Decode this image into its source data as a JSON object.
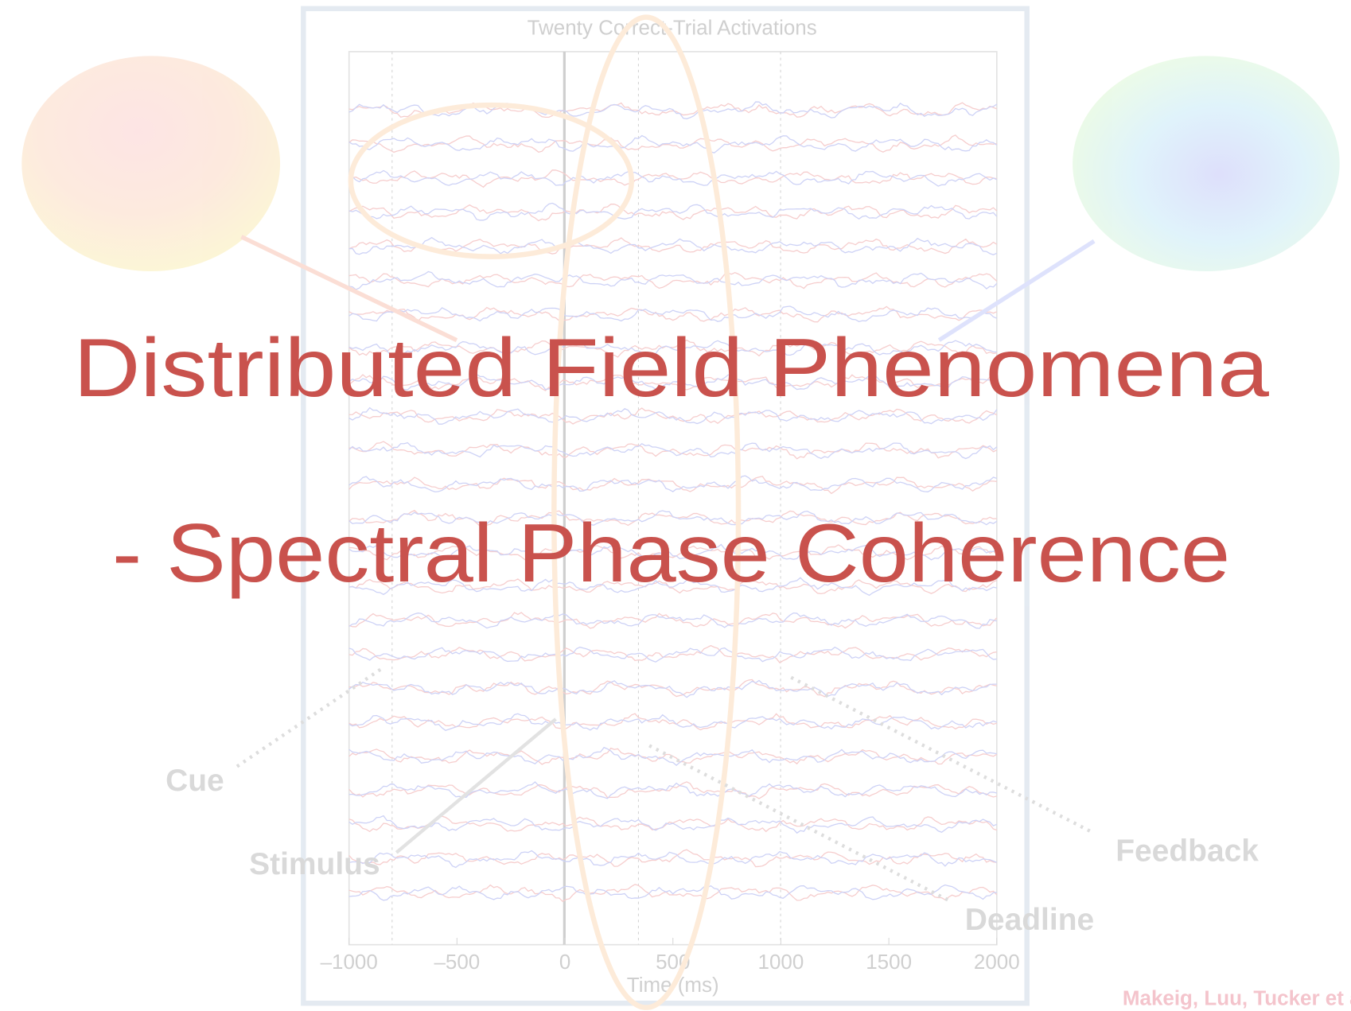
{
  "slide": {
    "title_line1": "Distributed Field Phenomena",
    "title_line2": "- Spectral Phase Coherence",
    "chart": {
      "title": "Twenty Correct-Trial Activations",
      "x_label": "Time (ms)",
      "xlim": [
        -1000,
        2000
      ],
      "xticks": [
        {
          "value": -1000,
          "label": "–1000"
        },
        {
          "value": -500,
          "label": "–500"
        },
        0,
        500,
        1000,
        1500,
        2000
      ]
    },
    "annotations": [
      "Cue",
      "Stimulus",
      "Feedback",
      "Deadline"
    ],
    "citation": "Makeig, Luu, Tucker et al."
  }
}
